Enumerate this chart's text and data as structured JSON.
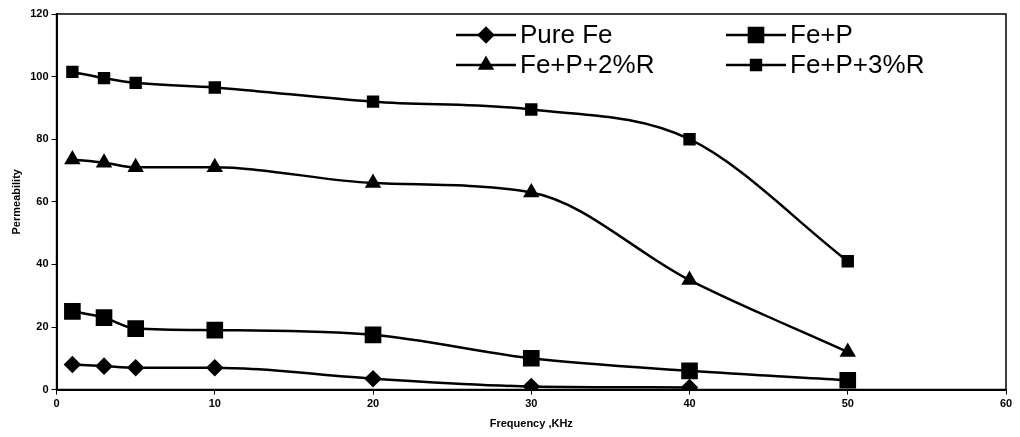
{
  "chart_data": {
    "type": "line",
    "xlabel": "Frequency ,KHz",
    "ylabel": "Permeability",
    "xlim": [
      0,
      60
    ],
    "xticks": [
      0,
      10,
      20,
      30,
      40,
      50,
      60
    ],
    "ylim": [
      0,
      120
    ],
    "yticks": [
      0,
      20,
      40,
      60,
      80,
      100,
      120
    ],
    "grid": false,
    "legend": "top right",
    "line_style": "solid",
    "x": [
      1,
      3,
      5,
      10,
      20,
      30,
      40,
      50
    ],
    "series": [
      {
        "name": "Pure Fe",
        "color": "#000000",
        "marker": "diamond",
        "values": [
          8,
          7.5,
          7,
          7,
          3.5,
          1,
          0.7,
          null
        ]
      },
      {
        "name": "Fe+P",
        "color": "#000000",
        "marker": "square",
        "values": [
          25,
          23,
          19.5,
          19,
          17.5,
          10,
          6,
          3
        ]
      },
      {
        "name": "Fe+P+2%R",
        "color": "#000000",
        "marker": "triangle",
        "values": [
          73.5,
          72.5,
          71,
          71,
          66,
          63,
          35,
          12
        ]
      },
      {
        "name": "Fe+P+3%R",
        "color": "#000000",
        "marker": "square",
        "values": [
          101.5,
          99.5,
          98,
          96.5,
          92,
          89.5,
          80,
          41
        ]
      }
    ]
  }
}
